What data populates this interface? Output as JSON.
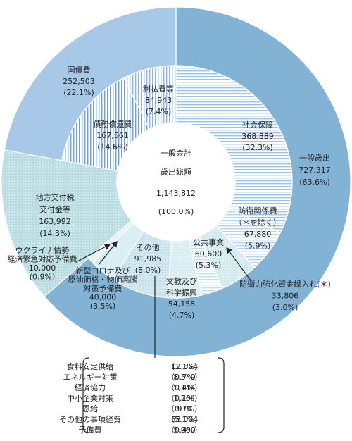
{
  "chart_data": {
    "type": "nested-donut",
    "center_title_lines": [
      "一般会計",
      "歳出総額"
    ],
    "total": 1143812,
    "total_label": "1,143,812",
    "total_share": 100.0,
    "total_share_label": "(100.0%)",
    "segments": [
      {
        "label_lines": [
          "一般歳出"
        ],
        "value": 727317,
        "value_label": "727,317",
        "share": 63.6,
        "share_label": "(63.6%)",
        "color": "#82b3d4",
        "pattern": null,
        "children": [
          {
            "label_lines": [
              "社会保障"
            ],
            "value": 368889,
            "value_label": "368,889",
            "share": 32.3,
            "share_label": "(32.3%)",
            "color": "#9cc3e6",
            "pattern": "hlines"
          },
          {
            "label_lines": [
              "防衛関係費",
              "（＊を除く）"
            ],
            "value": 67880,
            "value_label": "67,880",
            "share": 5.9,
            "share_label": "(5.9%)",
            "color": "#b5d3ec",
            "pattern": "hlines"
          },
          {
            "label_lines": [
              "公共事業"
            ],
            "value": 60600,
            "value_label": "60,600",
            "share": 5.3,
            "share_label": "(5.3%)",
            "color": "#d3ebee",
            "pattern": "dots"
          },
          {
            "label_lines": [
              "防衛力強化資金繰入れ(＊)"
            ],
            "value": 33806,
            "value_label": "33,806",
            "share": 3.0,
            "share_label": "(3.0%)",
            "color": "#c2dff0",
            "pattern": "hlines"
          },
          {
            "label_lines": [
              "文教及び",
              "科学振興"
            ],
            "value": 54158,
            "value_label": "54,158",
            "share": 4.7,
            "share_label": "(4.7%)",
            "color": "#d8eef2",
            "pattern": "dots"
          },
          {
            "label_lines": [
              "その他"
            ],
            "value": 91985,
            "value_label": "91,985",
            "share": 8.0,
            "share_label": "(8.0%)",
            "color": "#c9e3ee",
            "pattern": "dots"
          },
          {
            "label_lines": [
              "新型コロナ及び",
              "原油価格・物価高騰",
              "対策予備費"
            ],
            "value": 40000,
            "value_label": "40,000",
            "share": 3.5,
            "share_label": "(3.5%)",
            "color": "#d9eff3",
            "pattern": null
          },
          {
            "label_lines": [
              "ウクライナ情勢",
              "経済緊急対応予備費"
            ],
            "value": 10000,
            "value_label": "10,000",
            "share": 0.9,
            "share_label": "(0.9%)",
            "color": "#e7f4f6",
            "pattern": null
          }
        ]
      },
      {
        "label_lines": [
          "地方交付税",
          "交付金等"
        ],
        "value": 163992,
        "value_label": "163,992",
        "share": 14.3,
        "share_label": "(14.3%)",
        "color": "#b9dde2",
        "pattern": "dots",
        "children": []
      },
      {
        "label_lines": [
          "国債費"
        ],
        "value": 252503,
        "value_label": "252,503",
        "share": 22.1,
        "share_label": "(22.1%)",
        "color": "#a8c8e8",
        "pattern": null,
        "children": [
          {
            "label_lines": [
              "債務償還費"
            ],
            "value": 167561,
            "value_label": "167,561",
            "share": 14.6,
            "share_label": "(14.6%)",
            "color": "#6e9fd8",
            "pattern": "vlines"
          },
          {
            "label_lines": [
              "利払費等"
            ],
            "value": 84943,
            "value_label": "84,943",
            "share": 7.4,
            "share_label": "(7.4%)",
            "color": "#8db6e6",
            "pattern": "vlines"
          }
        ]
      }
    ],
    "other_breakdown": [
      {
        "name": "食料安定供給",
        "value": 12654,
        "value_label": "12,654",
        "share": 1.1,
        "share_label": "（1.1%）"
      },
      {
        "name": "エネルギー対策",
        "value": 8540,
        "value_label": "8,540",
        "share": 0.7,
        "share_label": "（0.7%）"
      },
      {
        "name": "経済協力",
        "value": 5114,
        "value_label": "5,114",
        "share": 0.4,
        "share_label": "（0.4%）"
      },
      {
        "name": "中小企業対策",
        "value": 1704,
        "value_label": "1,704",
        "share": 0.1,
        "share_label": "（0.1%）"
      },
      {
        "name": "恩給",
        "value": 970,
        "value_label": "970",
        "share": 0.1,
        "share_label": "（0.1%）"
      },
      {
        "name": "その他の事項経費",
        "value": 58004,
        "value_label": "58,004",
        "share": 5.1,
        "share_label": "（5.1%）"
      },
      {
        "name": "予備費",
        "value": 5000,
        "value_label": "5,000",
        "share": 0.4,
        "share_label": "（0.4%）"
      }
    ]
  }
}
